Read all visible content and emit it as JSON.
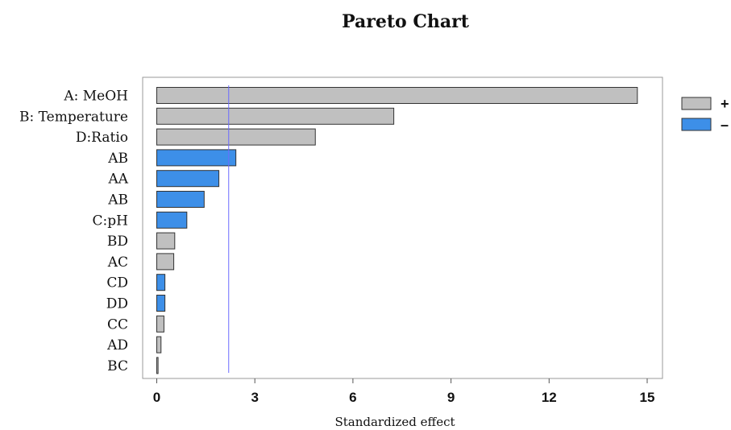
{
  "chart_data": {
    "type": "bar",
    "orientation": "horizontal",
    "title": "Pareto Chart",
    "xlabel": "Standardized effect",
    "ylabel": "",
    "xlim": [
      0,
      15.5
    ],
    "xticks": [
      0,
      3,
      6,
      9,
      12,
      15
    ],
    "xtick_labels": [
      "0",
      "3",
      "6",
      "9",
      "12",
      "15"
    ],
    "reference_line": 2.2,
    "categories": [
      "A: MeOH",
      "B: Temperature",
      "D:Ratio",
      "AB",
      "AA",
      "AB",
      "C:pH",
      "BD",
      "AC",
      "CD",
      "DD",
      "CC",
      "AD",
      "BC"
    ],
    "values": [
      14.7,
      7.25,
      4.85,
      2.42,
      1.9,
      1.45,
      0.92,
      0.55,
      0.52,
      0.25,
      0.25,
      0.22,
      0.13,
      0.04
    ],
    "signs": [
      "+",
      "+",
      "+",
      "-",
      "-",
      "-",
      "-",
      "+",
      "+",
      "-",
      "-",
      "+",
      "+",
      "+"
    ],
    "legend": {
      "position": "right",
      "entries": [
        {
          "label": "+",
          "color": "#c0c0c0"
        },
        {
          "label": "–",
          "color": "#3d8fe8"
        }
      ]
    },
    "colors": {
      "positive": "#c0c0c0",
      "negative": "#3d8fe8",
      "bar_border": "#333333",
      "reference_line": "#6b6bff",
      "frame": "#999999"
    },
    "grid": false
  }
}
